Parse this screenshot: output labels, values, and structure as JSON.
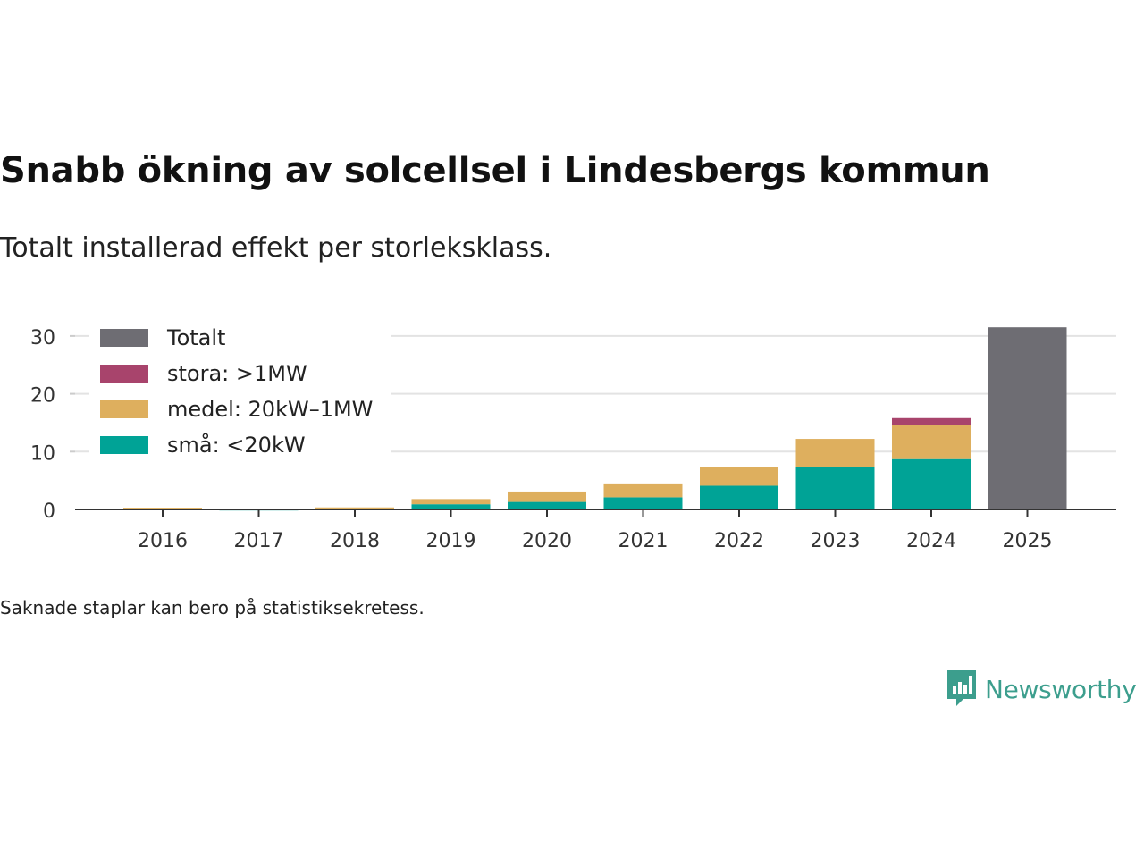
{
  "title": "Snabb ökning av solcellsel i Lindesbergs kommun",
  "subtitle": "Totalt installerad effekt per storleksklass.",
  "note": "Saknade staplar kan bero på statistiksekretess.",
  "brand": {
    "name": "Newsworthy",
    "color": "#3c9e8d"
  },
  "chart_data": {
    "type": "bar",
    "stacked": true,
    "categories": [
      "2016",
      "2017",
      "2018",
      "2019",
      "2020",
      "2021",
      "2022",
      "2023",
      "2024",
      "2025"
    ],
    "series": [
      {
        "name": "små: <20kW",
        "color": "#00a396",
        "values": [
          0.1,
          0.05,
          0.3,
          0.9,
          1.3,
          2.1,
          4.1,
          7.3,
          8.7,
          null
        ]
      },
      {
        "name": "medel: 20kW–1MW",
        "color": "#deaf5e",
        "values": [
          0.2,
          0.05,
          0.05,
          0.9,
          1.8,
          2.4,
          3.3,
          4.9,
          5.9,
          null
        ]
      },
      {
        "name": "stora: >1MW",
        "color": "#a8446c",
        "values": [
          0,
          0,
          0,
          0,
          0,
          0,
          0,
          0,
          1.2,
          null
        ]
      },
      {
        "name": "Totalt",
        "color": "#6e6d73",
        "values": [
          null,
          null,
          null,
          null,
          null,
          null,
          null,
          null,
          null,
          31.5
        ]
      }
    ],
    "legend_order": [
      "Totalt",
      "stora: >1MW",
      "medel: 20kW–1MW",
      "små: <20kW"
    ],
    "yticks": [
      0,
      10,
      20,
      30
    ],
    "ylim": [
      0,
      32
    ],
    "grid": true,
    "legend_position": "top-left",
    "xlabel": "",
    "ylabel": ""
  }
}
